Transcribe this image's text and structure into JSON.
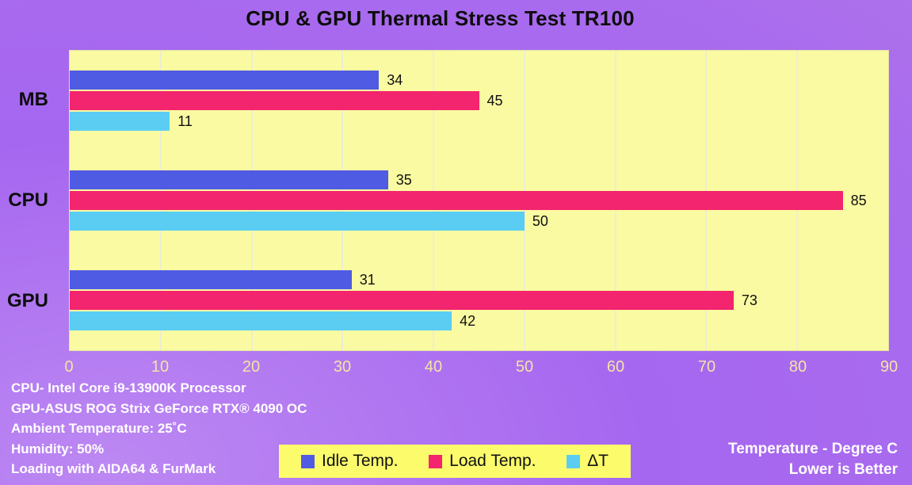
{
  "page": {
    "title": "CPU & GPU Thermal Stress Test  TR100"
  },
  "chart_data": {
    "type": "bar",
    "orientation": "horizontal",
    "title": "CPU & GPU Thermal Stress Test  TR100",
    "categories": [
      "MB",
      "CPU",
      "GPU"
    ],
    "series": [
      {
        "name": "Idle Temp.",
        "color": "#4f5be3",
        "values": [
          34,
          35,
          31
        ]
      },
      {
        "name": "Load Temp.",
        "color": "#f2256e",
        "values": [
          45,
          85,
          73
        ]
      },
      {
        "name": "ΔT",
        "color": "#5bcdf3",
        "values": [
          11,
          50,
          42
        ]
      }
    ],
    "xlim": [
      0,
      90
    ],
    "xticks": [
      0,
      10,
      20,
      30,
      40,
      50,
      60,
      70,
      80,
      90
    ],
    "grid": true,
    "legend_position": "bottom",
    "value_labels": true,
    "plot_background": "#fafaa2",
    "legend_background": "#fbfb6b",
    "tick_label_color": "#f3e4a6",
    "page_background": "#a96bee"
  },
  "annotations": {
    "left_lines": [
      "CPU- Intel Core i9-13900K Processor",
      "GPU-ASUS ROG Strix GeForce RTX® 4090 OC",
      "Ambient Temperature: 25˚C",
      "Humidity: 50%",
      "Loading with AIDA64  & FurMark"
    ],
    "right_lines": [
      "Temperature - Degree C",
      "Lower is Better"
    ]
  }
}
